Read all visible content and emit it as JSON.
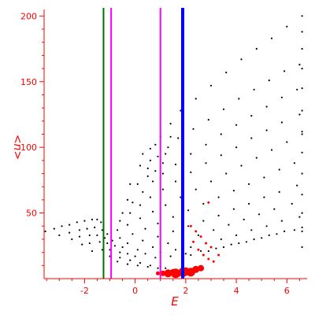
{
  "chart_data": {
    "type": "scatter",
    "xlabel": "E",
    "ylabel": "<n>",
    "xlim": [
      -3.6,
      6.8
    ],
    "ylim": [
      0,
      205
    ],
    "grid": false,
    "x_ticks": [
      -2,
      0,
      2,
      4,
      6
    ],
    "y_ticks": [
      50,
      100,
      150,
      200
    ],
    "x_tick_labels": [
      "-2",
      "0",
      "2",
      "4",
      "6"
    ],
    "y_tick_labels": [
      "50",
      "100",
      "150",
      "200"
    ],
    "colors": {
      "axis": "#ff0000",
      "points": "#000000",
      "highlight": "#ff0000",
      "line_green": "#007000",
      "line_magenta": "#ff00ff",
      "line_blue": "#0000ff"
    },
    "vertical_lines": [
      {
        "x": -1.25,
        "color": "#007000",
        "width": 2
      },
      {
        "x": -0.95,
        "color": "#ff00ff",
        "width": 2
      },
      {
        "x": 1.0,
        "color": "#ff00ff",
        "width": 2
      },
      {
        "x": 1.88,
        "color": "#0000ff",
        "width": 4
      }
    ],
    "series": [
      {
        "values": [
          [
            -3.55,
            36
          ],
          [
            -3.2,
            38
          ],
          [
            -2.9,
            40
          ],
          [
            -2.6,
            41
          ],
          [
            -2.3,
            43
          ],
          [
            -2.0,
            44
          ],
          [
            -1.7,
            45
          ],
          [
            -1.5,
            45
          ],
          [
            -1.35,
            43
          ],
          [
            -1.25,
            40
          ],
          [
            -3.0,
            33
          ],
          [
            -2.6,
            35
          ],
          [
            -2.2,
            37
          ],
          [
            -1.9,
            38
          ],
          [
            -1.6,
            39
          ],
          [
            -1.3,
            37
          ],
          [
            -1.1,
            34
          ],
          [
            -2.5,
            30
          ],
          [
            -2.2,
            32
          ],
          [
            -1.8,
            33
          ],
          [
            -1.5,
            33
          ],
          [
            -1.2,
            31
          ],
          [
            -0.9,
            29
          ],
          [
            -2.1,
            26
          ],
          [
            -1.8,
            27
          ],
          [
            -1.4,
            28
          ],
          [
            -1.1,
            27
          ],
          [
            -0.8,
            25
          ],
          [
            -0.5,
            24
          ],
          [
            -1.7,
            21
          ],
          [
            -1.3,
            22
          ],
          [
            -1.0,
            22
          ],
          [
            -0.6,
            20
          ],
          [
            -0.3,
            19
          ],
          [
            0.0,
            17
          ],
          [
            -1.0,
            17
          ],
          [
            -0.6,
            16
          ],
          [
            -0.2,
            14
          ],
          [
            0.2,
            12
          ],
          [
            0.6,
            10
          ],
          [
            1.0,
            9
          ],
          [
            -0.7,
            13
          ],
          [
            -0.3,
            11
          ],
          [
            0.1,
            10
          ],
          [
            0.5,
            9
          ],
          [
            0.9,
            8
          ],
          [
            1.2,
            8
          ],
          [
            -0.2,
            72
          ],
          [
            0.2,
            86
          ],
          [
            0.6,
            99
          ],
          [
            1.0,
            108
          ],
          [
            1.4,
            118
          ],
          [
            1.8,
            128
          ],
          [
            2.4,
            137
          ],
          [
            3.0,
            147
          ],
          [
            3.6,
            157
          ],
          [
            4.2,
            167
          ],
          [
            4.8,
            175
          ],
          [
            5.4,
            183
          ],
          [
            6.0,
            192
          ],
          [
            6.6,
            200
          ],
          [
            -0.3,
            60
          ],
          [
            0.1,
            72
          ],
          [
            0.5,
            84
          ],
          [
            0.9,
            93
          ],
          [
            1.3,
            100
          ],
          [
            1.7,
            107
          ],
          [
            2.3,
            114
          ],
          [
            2.9,
            121
          ],
          [
            3.5,
            129
          ],
          [
            4.1,
            137
          ],
          [
            4.7,
            144
          ],
          [
            5.3,
            151
          ],
          [
            5.9,
            158
          ],
          [
            6.5,
            163
          ],
          [
            -0.5,
            50
          ],
          [
            -0.1,
            58
          ],
          [
            0.3,
            66
          ],
          [
            0.7,
            74
          ],
          [
            1.1,
            80
          ],
          [
            1.6,
            87
          ],
          [
            2.2,
            95
          ],
          [
            2.8,
            102
          ],
          [
            3.4,
            110
          ],
          [
            4.0,
            117
          ],
          [
            4.6,
            124
          ],
          [
            5.2,
            131
          ],
          [
            5.8,
            138
          ],
          [
            6.4,
            144
          ],
          [
            -0.6,
            44
          ],
          [
            -0.2,
            50
          ],
          [
            0.2,
            56
          ],
          [
            0.6,
            62
          ],
          [
            1.1,
            68
          ],
          [
            1.6,
            74
          ],
          [
            2.2,
            81
          ],
          [
            2.8,
            88
          ],
          [
            3.4,
            94
          ],
          [
            4.0,
            100
          ],
          [
            4.6,
            107
          ],
          [
            5.2,
            113
          ],
          [
            5.8,
            119
          ],
          [
            6.5,
            125
          ],
          [
            -0.7,
            37
          ],
          [
            -0.3,
            41
          ],
          [
            0.2,
            46
          ],
          [
            0.7,
            51
          ],
          [
            1.2,
            56
          ],
          [
            1.8,
            62
          ],
          [
            2.4,
            68
          ],
          [
            3.0,
            74
          ],
          [
            3.6,
            80
          ],
          [
            4.2,
            86
          ],
          [
            4.8,
            92
          ],
          [
            5.4,
            98
          ],
          [
            6.0,
            104
          ],
          [
            6.6,
            110
          ],
          [
            -0.6,
            31
          ],
          [
            -0.1,
            34
          ],
          [
            0.4,
            38
          ],
          [
            0.9,
            42
          ],
          [
            1.5,
            47
          ],
          [
            2.1,
            52
          ],
          [
            2.7,
            57
          ],
          [
            3.3,
            62
          ],
          [
            3.9,
            67
          ],
          [
            4.5,
            72
          ],
          [
            5.1,
            77
          ],
          [
            5.7,
            83
          ],
          [
            6.3,
            88
          ],
          [
            -0.3,
            27
          ],
          [
            0.3,
            29
          ],
          [
            0.9,
            32
          ],
          [
            1.5,
            36
          ],
          [
            2.1,
            40
          ],
          [
            2.7,
            44
          ],
          [
            3.3,
            48
          ],
          [
            3.9,
            53
          ],
          [
            4.5,
            57
          ],
          [
            5.1,
            62
          ],
          [
            5.7,
            66
          ],
          [
            6.4,
            71
          ],
          [
            0.1,
            22
          ],
          [
            0.7,
            24
          ],
          [
            1.3,
            27
          ],
          [
            1.9,
            30
          ],
          [
            2.5,
            33
          ],
          [
            3.1,
            37
          ],
          [
            3.7,
            41
          ],
          [
            4.3,
            45
          ],
          [
            4.9,
            49
          ],
          [
            5.5,
            53
          ],
          [
            6.2,
            57
          ],
          [
            0.4,
            19
          ],
          [
            1.0,
            20
          ],
          [
            1.6,
            22
          ],
          [
            2.2,
            24
          ],
          [
            2.8,
            27
          ],
          [
            3.4,
            30
          ],
          [
            4.0,
            33
          ],
          [
            4.6,
            37
          ],
          [
            5.2,
            40
          ],
          [
            5.8,
            44
          ],
          [
            6.5,
            47
          ],
          [
            0.8,
            16
          ],
          [
            1.4,
            17
          ],
          [
            2.0,
            19
          ],
          [
            2.6,
            21
          ],
          [
            3.2,
            23
          ],
          [
            3.8,
            26
          ],
          [
            4.4,
            28
          ],
          [
            5.0,
            31
          ],
          [
            5.6,
            34
          ],
          [
            6.3,
            37
          ],
          [
            0.3,
            95
          ],
          [
            0.8,
            102
          ],
          [
            1.4,
            108
          ],
          [
            1.1,
            88
          ],
          [
            0.8,
            82
          ],
          [
            0.5,
            78
          ],
          [
            0.6,
            90
          ],
          [
            1.2,
            95
          ],
          [
            2.2,
            18
          ],
          [
            2.9,
            21
          ],
          [
            3.5,
            24
          ],
          [
            4.1,
            27
          ],
          [
            4.7,
            30
          ],
          [
            5.3,
            33
          ],
          [
            5.9,
            36
          ],
          [
            6.6,
            39
          ],
          [
            6.6,
            188
          ],
          [
            6.6,
            175
          ],
          [
            6.6,
            160
          ],
          [
            6.6,
            145
          ],
          [
            6.6,
            128
          ],
          [
            6.6,
            112
          ],
          [
            6.6,
            96
          ],
          [
            6.6,
            80
          ],
          [
            6.6,
            64
          ],
          [
            6.6,
            50
          ],
          [
            6.6,
            36
          ],
          [
            6.6,
            24
          ]
        ]
      },
      {
        "values": [
          [
            1.3,
            4
          ],
          [
            1.6,
            4
          ],
          [
            1.9,
            5
          ],
          [
            2.2,
            5
          ],
          [
            2.4,
            7
          ],
          [
            2.6,
            8
          ],
          [
            1.1,
            4
          ],
          [
            1.5,
            5
          ],
          [
            2.0,
            6
          ],
          [
            2.3,
            28
          ],
          [
            2.5,
            22
          ],
          [
            2.7,
            18
          ],
          [
            2.9,
            15
          ],
          [
            3.1,
            13
          ],
          [
            3.3,
            18
          ],
          [
            2.6,
            32
          ],
          [
            2.8,
            27
          ],
          [
            3.0,
            24
          ],
          [
            2.4,
            36
          ],
          [
            2.2,
            40
          ],
          [
            2.9,
            58
          ],
          [
            0.9,
            4
          ],
          [
            1.7,
            3
          ],
          [
            2.1,
            4
          ]
        ],
        "sizes": [
          10,
          12,
          12,
          11,
          9,
          8,
          7,
          8,
          9,
          3,
          3,
          3,
          3,
          3,
          3,
          3,
          3,
          3,
          3,
          3,
          3,
          5,
          6,
          6
        ]
      }
    ]
  }
}
